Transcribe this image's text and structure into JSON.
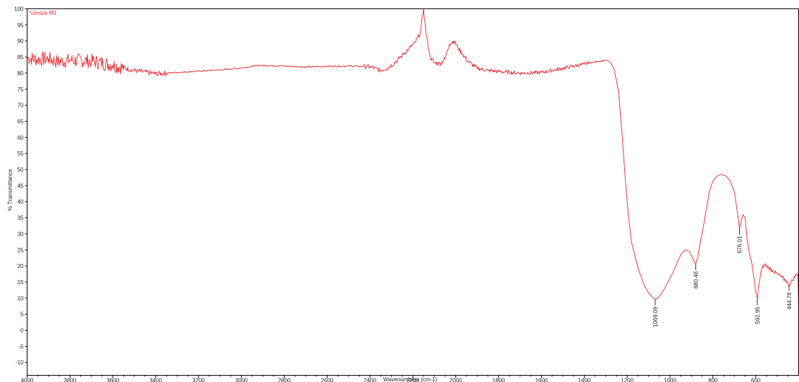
{
  "chart_data": {
    "type": "line",
    "title": "",
    "series_label": "*ceniza M1",
    "xlabel": "Wavenumbers (cm-1)",
    "ylabel": "% Transmittance",
    "xlim": [
      4000,
      400
    ],
    "ylim": [
      -14,
      100
    ],
    "x_reversed": true,
    "grid": false,
    "x_ticks": [
      4000,
      3800,
      3600,
      3400,
      3200,
      3000,
      2800,
      2600,
      2400,
      2200,
      2000,
      1800,
      1600,
      1400,
      1200,
      1000,
      800,
      600
    ],
    "y_ticks": [
      100,
      95,
      90,
      85,
      80,
      75,
      70,
      65,
      60,
      55,
      50,
      45,
      40,
      35,
      30,
      25,
      20,
      15,
      10,
      5,
      0,
      -5,
      -10
    ],
    "line_color": "#e8242b",
    "series": [
      {
        "name": "*ceniza M1",
        "points": [
          [
            4000,
            84.8
          ],
          [
            3950,
            84.2
          ],
          [
            3900,
            84.5
          ],
          [
            3860,
            83.5
          ],
          [
            3800,
            84.0
          ],
          [
            3700,
            83.8
          ],
          [
            3600,
            82.5
          ],
          [
            3500,
            80.8
          ],
          [
            3400,
            79.8
          ],
          [
            3300,
            80.2
          ],
          [
            3200,
            80.6
          ],
          [
            3100,
            81.0
          ],
          [
            3000,
            81.6
          ],
          [
            2920,
            82.4
          ],
          [
            2800,
            82.2
          ],
          [
            2700,
            81.9
          ],
          [
            2600,
            82.1
          ],
          [
            2500,
            82.2
          ],
          [
            2400,
            82.0
          ],
          [
            2350,
            80.8
          ],
          [
            2320,
            81.5
          ],
          [
            2280,
            83.5
          ],
          [
            2250,
            85.5
          ],
          [
            2220,
            87.5
          ],
          [
            2190,
            89.5
          ],
          [
            2165,
            92.5
          ],
          [
            2150,
            100.0
          ],
          [
            2140,
            93.0
          ],
          [
            2120,
            85.0
          ],
          [
            2100,
            83.2
          ],
          [
            2070,
            83.0
          ],
          [
            2050,
            84.5
          ],
          [
            2030,
            89.0
          ],
          [
            2010,
            90.0
          ],
          [
            1990,
            88.0
          ],
          [
            1970,
            86.0
          ],
          [
            1940,
            83.5
          ],
          [
            1900,
            81.5
          ],
          [
            1850,
            80.8
          ],
          [
            1800,
            80.5
          ],
          [
            1700,
            80.0
          ],
          [
            1600,
            80.2
          ],
          [
            1500,
            81.5
          ],
          [
            1400,
            82.8
          ],
          [
            1350,
            83.5
          ],
          [
            1300,
            84.0
          ],
          [
            1280,
            83.5
          ],
          [
            1260,
            81.0
          ],
          [
            1240,
            74.0
          ],
          [
            1225,
            62.0
          ],
          [
            1210,
            48.0
          ],
          [
            1195,
            36.0
          ],
          [
            1180,
            27.5
          ],
          [
            1160,
            22.0
          ],
          [
            1140,
            17.5
          ],
          [
            1120,
            14.0
          ],
          [
            1100,
            11.5
          ],
          [
            1080,
            10.2
          ],
          [
            1069.09,
            9.5
          ],
          [
            1050,
            10.5
          ],
          [
            1030,
            12.5
          ],
          [
            1010,
            15.0
          ],
          [
            990,
            17.5
          ],
          [
            970,
            20.5
          ],
          [
            950,
            23.5
          ],
          [
            930,
            25.0
          ],
          [
            910,
            24.5
          ],
          [
            895,
            22.5
          ],
          [
            880.48,
            20.5
          ],
          [
            870,
            23.0
          ],
          [
            860,
            27.0
          ],
          [
            845,
            32.0
          ],
          [
            830,
            38.0
          ],
          [
            815,
            43.5
          ],
          [
            800,
            46.5
          ],
          [
            780,
            48.0
          ],
          [
            760,
            48.5
          ],
          [
            740,
            48.0
          ],
          [
            720,
            46.5
          ],
          [
            700,
            43.0
          ],
          [
            690,
            38.5
          ],
          [
            680,
            34.0
          ],
          [
            676.01,
            31.5
          ],
          [
            670,
            33.5
          ],
          [
            660,
            36.0
          ],
          [
            650,
            35.0
          ],
          [
            640,
            28.0
          ],
          [
            630,
            24.0
          ],
          [
            620,
            21.5
          ],
          [
            610,
            17.0
          ],
          [
            600,
            12.0
          ],
          [
            592.95,
            9.5
          ],
          [
            585,
            14.5
          ],
          [
            575,
            18.5
          ],
          [
            560,
            20.5
          ],
          [
            540,
            19.5
          ],
          [
            520,
            18.5
          ],
          [
            500,
            17.5
          ],
          [
            480,
            16.5
          ],
          [
            460,
            15.5
          ],
          [
            444.78,
            14.0
          ],
          [
            430,
            15.5
          ],
          [
            415,
            17.0
          ],
          [
            400,
            18.0
          ],
          [
            400,
            5.0
          ]
        ]
      }
    ],
    "peak_labels": [
      {
        "x": 1069.09,
        "y": 9.5,
        "text": "1069.09"
      },
      {
        "x": 880.48,
        "y": 20.5,
        "text": "880.48"
      },
      {
        "x": 676.01,
        "y": 31.5,
        "text": "676.01"
      },
      {
        "x": 592.95,
        "y": 9.5,
        "text": "592.95"
      },
      {
        "x": 444.78,
        "y": 14.0,
        "text": "444.78"
      }
    ]
  }
}
